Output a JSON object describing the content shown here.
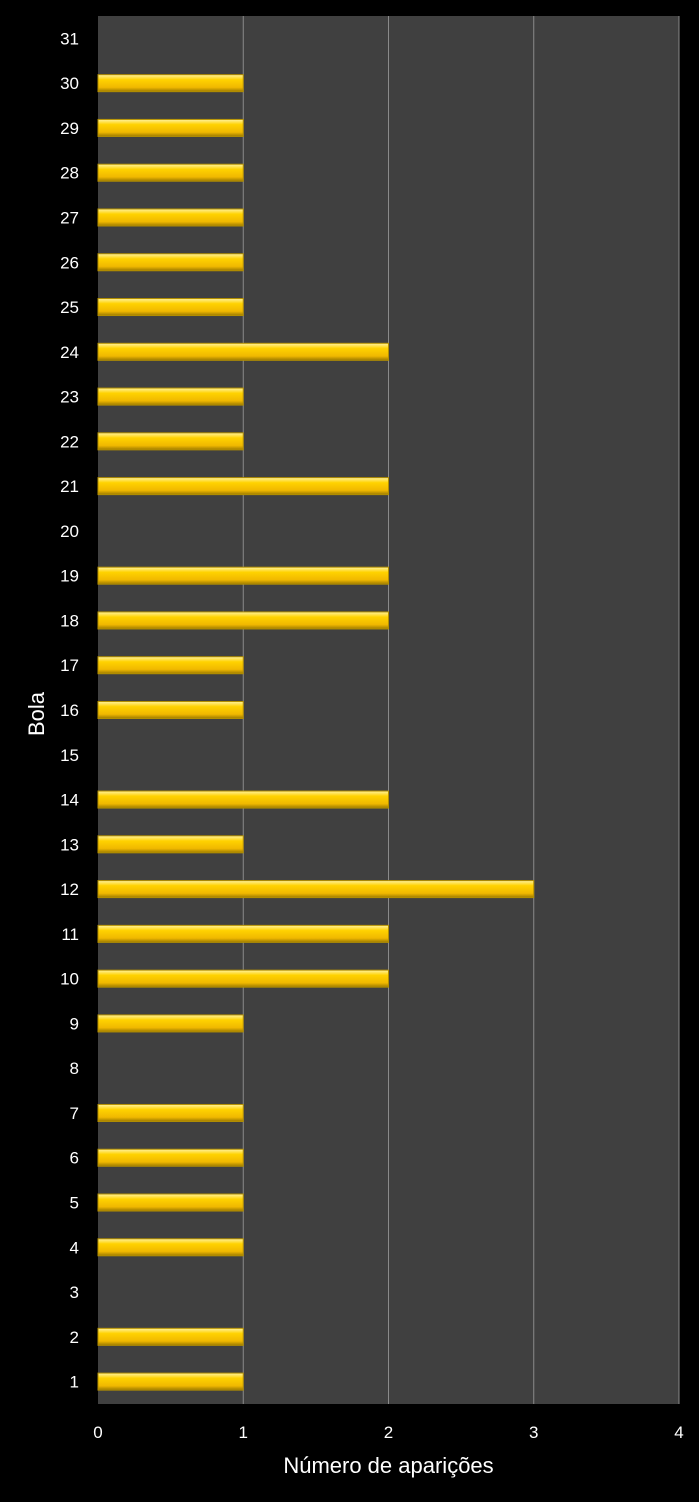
{
  "chart_data": {
    "type": "bar",
    "orientation": "horizontal",
    "title": "",
    "xlabel": "Número de aparições",
    "ylabel": "Bola",
    "categories": [
      "1",
      "2",
      "3",
      "4",
      "5",
      "6",
      "7",
      "8",
      "9",
      "10",
      "11",
      "12",
      "13",
      "14",
      "15",
      "16",
      "17",
      "18",
      "19",
      "20",
      "21",
      "22",
      "23",
      "24",
      "25",
      "26",
      "27",
      "28",
      "29",
      "30",
      "31"
    ],
    "values": [
      1,
      1,
      0,
      1,
      1,
      1,
      1,
      0,
      1,
      2,
      2,
      3,
      1,
      2,
      0,
      1,
      1,
      2,
      2,
      0,
      2,
      1,
      1,
      2,
      1,
      1,
      1,
      1,
      1,
      1,
      0
    ],
    "xlim": [
      0,
      4
    ],
    "x_ticks": [
      "0",
      "1",
      "2",
      "3",
      "4"
    ],
    "grid": "vertical",
    "legend": "none",
    "colors": {
      "background": "#000000",
      "plot_area": "#404040",
      "bar": "#f5c800",
      "bar_highlight": "#ffe55a",
      "bar_shadow": "#b38f00",
      "gridline": "#8a8a8a",
      "text": "#ffffff"
    }
  }
}
